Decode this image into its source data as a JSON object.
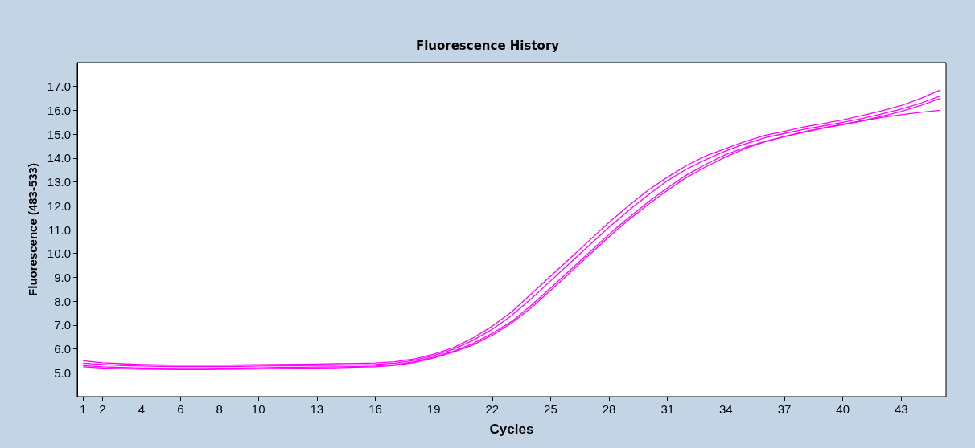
{
  "chart_data": {
    "type": "line",
    "title": "Fluorescence History",
    "xlabel": "Cycles",
    "ylabel": "Fluorescence (483-533)",
    "x": [
      1,
      2,
      3,
      4,
      5,
      6,
      7,
      8,
      9,
      10,
      11,
      12,
      13,
      14,
      15,
      16,
      17,
      18,
      19,
      20,
      21,
      22,
      23,
      24,
      25,
      26,
      27,
      28,
      29,
      30,
      31,
      32,
      33,
      34,
      35,
      36,
      37,
      38,
      39,
      40,
      41,
      42,
      43,
      44,
      45
    ],
    "series": [
      {
        "color": "#ff00ff",
        "values": [
          5.5,
          5.42,
          5.38,
          5.35,
          5.33,
          5.32,
          5.32,
          5.32,
          5.33,
          5.34,
          5.35,
          5.36,
          5.37,
          5.38,
          5.39,
          5.41,
          5.46,
          5.58,
          5.78,
          6.05,
          6.45,
          6.95,
          7.55,
          8.3,
          9.05,
          9.8,
          10.55,
          11.3,
          12.0,
          12.65,
          13.2,
          13.7,
          14.1,
          14.4,
          14.7,
          14.95,
          15.12,
          15.3,
          15.45,
          15.6,
          15.78,
          15.98,
          16.2,
          16.5,
          16.85
        ]
      },
      {
        "color": "#ff00ff",
        "values": [
          5.4,
          5.35,
          5.3,
          5.28,
          5.27,
          5.26,
          5.26,
          5.26,
          5.27,
          5.28,
          5.29,
          5.3,
          5.31,
          5.32,
          5.33,
          5.35,
          5.4,
          5.52,
          5.72,
          5.98,
          6.35,
          6.82,
          7.4,
          8.1,
          8.85,
          9.6,
          10.35,
          11.1,
          11.8,
          12.45,
          13.05,
          13.55,
          13.95,
          14.3,
          14.6,
          14.85,
          15.03,
          15.2,
          15.35,
          15.5,
          15.66,
          15.85,
          16.05,
          16.3,
          16.6
        ]
      },
      {
        "color": "#ff00ff",
        "values": [
          5.3,
          5.25,
          5.22,
          5.2,
          5.19,
          5.18,
          5.18,
          5.19,
          5.2,
          5.21,
          5.22,
          5.23,
          5.24,
          5.25,
          5.26,
          5.28,
          5.34,
          5.46,
          5.66,
          5.9,
          6.22,
          6.65,
          7.15,
          7.82,
          8.55,
          9.3,
          10.05,
          10.8,
          11.5,
          12.15,
          12.75,
          13.3,
          13.75,
          14.15,
          14.45,
          14.7,
          14.9,
          15.08,
          15.25,
          15.4,
          15.56,
          15.75,
          15.95,
          16.2,
          16.5
        ]
      },
      {
        "color": "#ff00ff",
        "values": [
          5.25,
          5.2,
          5.17,
          5.15,
          5.14,
          5.13,
          5.13,
          5.14,
          5.15,
          5.16,
          5.18,
          5.19,
          5.2,
          5.21,
          5.23,
          5.25,
          5.31,
          5.43,
          5.62,
          5.86,
          6.16,
          6.58,
          7.08,
          7.72,
          8.45,
          9.2,
          9.95,
          10.7,
          11.4,
          12.05,
          12.65,
          13.2,
          13.65,
          14.05,
          14.4,
          14.68,
          14.9,
          15.1,
          15.27,
          15.42,
          15.56,
          15.7,
          15.82,
          15.92,
          16.0
        ]
      }
    ],
    "xlim": [
      0.7,
      45.3
    ],
    "xticks": [
      1,
      2,
      4,
      6,
      8,
      10,
      13,
      16,
      19,
      22,
      25,
      28,
      31,
      34,
      37,
      40,
      43
    ],
    "ylim": [
      4,
      18
    ],
    "yticks": [
      {
        "value": 5,
        "label": "5.0"
      },
      {
        "value": 6,
        "label": "6.0"
      },
      {
        "value": 7,
        "label": "7.0"
      },
      {
        "value": 8,
        "label": "8.0"
      },
      {
        "value": 9,
        "label": "9.0"
      },
      {
        "value": 10,
        "label": "10.0"
      },
      {
        "value": 11,
        "label": "11.0"
      },
      {
        "value": 12,
        "label": "12.0"
      },
      {
        "value": 13,
        "label": "13.0"
      },
      {
        "value": 14,
        "label": "14.0"
      },
      {
        "value": 15,
        "label": "15.0"
      },
      {
        "value": 16,
        "label": "16.0"
      },
      {
        "value": 17,
        "label": "17.0"
      }
    ],
    "grid": false,
    "marker": "none",
    "line_style": "solid"
  }
}
